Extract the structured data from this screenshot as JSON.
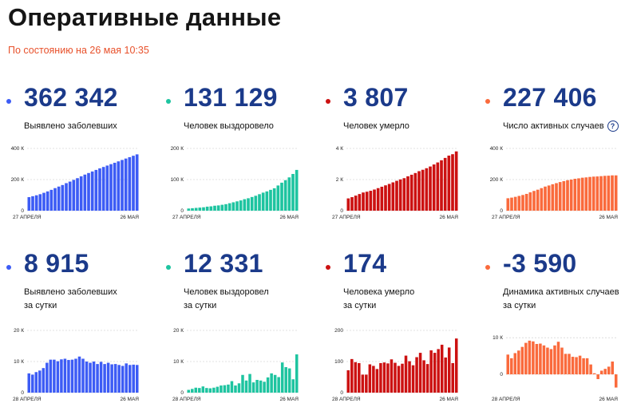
{
  "header": {
    "title": "Оперативные данные",
    "subtitle": "По состоянию на 26 мая 10:35",
    "help_glyph": "?"
  },
  "colors": {
    "title": "#151515",
    "subtitle": "#e8512b",
    "number": "#1b3a8a",
    "blue": "#3d5cf5",
    "teal": "#1ec4a0",
    "red": "#cc1111",
    "orange": "#fa6a3c"
  },
  "chart_data": [
    {
      "type": "bar",
      "color": "#3d5cf5",
      "value": "362 342",
      "label_lines": [
        "Выявлено заболевших"
      ],
      "has_help": false,
      "yticks": [
        0,
        200,
        400
      ],
      "ytick_labels": [
        "0",
        "200 К",
        "400 К"
      ],
      "ylim": [
        0,
        400
      ],
      "x_start": "27 АПРЕЛЯ",
      "x_end": "26 МАЯ",
      "values": [
        87,
        93,
        99,
        106,
        115,
        124,
        134,
        145,
        155,
        165,
        177,
        187,
        198,
        209,
        221,
        232,
        242,
        252,
        262,
        272,
        281,
        290,
        299,
        308,
        317,
        326,
        335,
        344,
        353,
        362
      ]
    },
    {
      "type": "bar",
      "color": "#1ec4a0",
      "value": "131 129",
      "label_lines": [
        "Человек выздоровело"
      ],
      "has_help": false,
      "yticks": [
        0,
        100,
        200
      ],
      "ytick_labels": [
        "0",
        "100 К",
        "200 К"
      ],
      "ylim": [
        0,
        200
      ],
      "x_start": "27 АПРЕЛЯ",
      "x_end": "26 МАЯ",
      "values": [
        7,
        8,
        9,
        10,
        11,
        13,
        14,
        16,
        17,
        19,
        21,
        24,
        27,
        30,
        33,
        37,
        40,
        44,
        48,
        53,
        58,
        62,
        67,
        72,
        81,
        90,
        98,
        107,
        118,
        131
      ]
    },
    {
      "type": "bar",
      "color": "#cc1111",
      "value": "3 807",
      "label_lines": [
        "Человек умерло"
      ],
      "has_help": false,
      "yticks": [
        0,
        2,
        4
      ],
      "ytick_labels": [
        "0",
        "2 К",
        "4 К"
      ],
      "ylim": [
        0,
        4
      ],
      "x_start": "27 АПРЕЛЯ",
      "x_end": "26 МАЯ",
      "values": [
        0.79,
        0.87,
        0.97,
        1.07,
        1.17,
        1.22,
        1.28,
        1.36,
        1.45,
        1.54,
        1.63,
        1.72,
        1.82,
        1.92,
        2.01,
        2.09,
        2.21,
        2.31,
        2.42,
        2.54,
        2.63,
        2.73,
        2.84,
        2.97,
        3.1,
        3.24,
        3.39,
        3.54,
        3.63,
        3.81
      ]
    },
    {
      "type": "bar",
      "color": "#fa6a3c",
      "value": "227 406",
      "label_lines": [
        "Число активных случаев"
      ],
      "has_help": true,
      "yticks": [
        0,
        200,
        400
      ],
      "ytick_labels": [
        "0",
        "200 К",
        "400 К"
      ],
      "ylim": [
        0,
        400
      ],
      "x_start": "27 АПРЕЛЯ",
      "x_end": "26 МАЯ",
      "values": [
        80,
        84,
        89,
        95,
        101,
        108,
        118,
        127,
        135,
        145,
        155,
        162,
        170,
        177,
        184,
        190,
        196,
        200,
        205,
        208,
        212,
        214,
        217,
        219,
        220,
        222,
        224,
        225,
        227,
        227
      ]
    },
    {
      "type": "bar",
      "color": "#3d5cf5",
      "value": "8 915",
      "label_lines": [
        "Выявлено заболевших",
        "за сутки"
      ],
      "has_help": false,
      "yticks": [
        0,
        10,
        20
      ],
      "ytick_labels": [
        "0",
        "10 К",
        "20 К"
      ],
      "ylim": [
        0,
        20
      ],
      "x_start": "28 АПРЕЛЯ",
      "x_end": "26 МАЯ",
      "values": [
        6.2,
        5.8,
        6.6,
        7.1,
        7.9,
        9.6,
        10.6,
        10.6,
        10.1,
        10.7,
        10.9,
        10.5,
        10.6,
        10.9,
        11.6,
        10.9,
        10.0,
        9.6,
        10.0,
        9.2,
        9.9,
        9.2,
        9.6,
        9.1,
        9.2,
        8.9,
        8.6,
        9.4,
        8.9,
        9.0,
        8.9
      ]
    },
    {
      "type": "bar",
      "color": "#1ec4a0",
      "value": "12 331",
      "label_lines": [
        "Человек выздоровел",
        "за сутки"
      ],
      "has_help": false,
      "yticks": [
        0,
        10,
        20
      ],
      "ytick_labels": [
        "0",
        "10 К",
        "20 К"
      ],
      "ylim": [
        0,
        20
      ],
      "x_start": "28 АПРЕЛЯ",
      "x_end": "26 МАЯ",
      "values": [
        0.9,
        1.2,
        1.6,
        1.5,
        2.0,
        1.5,
        1.4,
        1.6,
        1.9,
        2.3,
        2.4,
        2.6,
        3.7,
        2.3,
        3.0,
        5.7,
        3.9,
        6.0,
        3.3,
        4.1,
        3.9,
        3.5,
        4.9,
        6.2,
        5.7,
        5.0,
        9.7,
        8.2,
        7.8,
        4.3,
        12.3
      ]
    },
    {
      "type": "bar",
      "color": "#cc1111",
      "value": "174",
      "label_lines": [
        "Человека умерло",
        "за сутки"
      ],
      "has_help": false,
      "yticks": [
        0,
        100,
        200
      ],
      "ytick_labels": [
        "0",
        "100",
        "200"
      ],
      "ylim": [
        0,
        200
      ],
      "x_start": "28 АПРЕЛЯ",
      "x_end": "26 МАЯ",
      "values": [
        72,
        108,
        98,
        95,
        58,
        58,
        91,
        86,
        76,
        95,
        97,
        94,
        107,
        96,
        86,
        93,
        119,
        101,
        88,
        114,
        128,
        104,
        92,
        136,
        128,
        140,
        154,
        113,
        145,
        95,
        174
      ]
    },
    {
      "type": "bar",
      "color": "#fa6a3c",
      "value": "-3 590",
      "label_lines": [
        "Динамика активных случаев",
        "за сутки"
      ],
      "has_help": false,
      "yticks": [
        0,
        10
      ],
      "ytick_labels": [
        "0",
        "10 К"
      ],
      "ylim": [
        -5,
        12
      ],
      "x_start": "28 АПРЕЛЯ",
      "x_end": "26 МАЯ",
      "values": [
        5.4,
        4.4,
        5.8,
        6.5,
        7.5,
        8.6,
        9.2,
        9.0,
        8.3,
        8.4,
        7.9,
        7.3,
        6.9,
        7.9,
        8.9,
        7.3,
        5.6,
        5.6,
        4.8,
        4.7,
        5.1,
        4.4,
        4.4,
        2.7,
        0.3,
        -1.3,
        1.0,
        1.5,
        2.1,
        3.5,
        -3.6
      ]
    }
  ]
}
